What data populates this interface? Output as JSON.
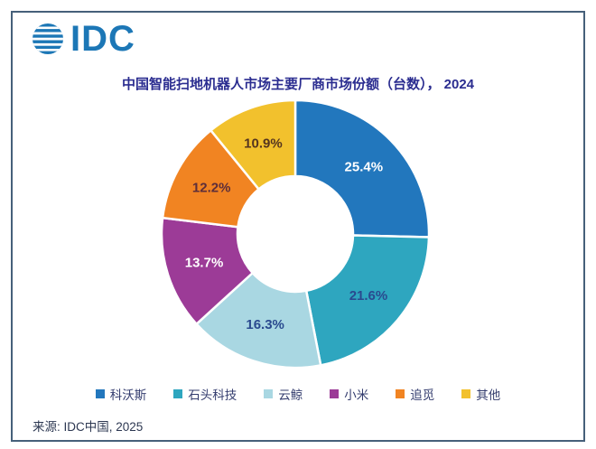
{
  "header": {
    "logo_text": "IDC",
    "logo_color": "#1c77b6"
  },
  "title": "中国智能扫地机器人市场主要厂商市场份额（台数）， 2024",
  "source": "来源: IDC中国, 2025",
  "colors": {
    "title_text": "#2b2d90",
    "legend_text": "#333c6e",
    "source_text": "#2d3852",
    "frame_border": "#46607a",
    "background": "#ffffff"
  },
  "chart_data": {
    "type": "pie",
    "subtype": "donut",
    "title": "中国智能扫地机器人市场主要厂商市场份额（台数）， 2024",
    "categories": [
      "科沃斯",
      "石头科技",
      "云鲸",
      "小米",
      "追觅",
      "其他"
    ],
    "values": [
      25.4,
      21.6,
      16.3,
      13.7,
      12.2,
      10.9
    ],
    "labels": [
      "25.4%",
      "21.6%",
      "16.3%",
      "13.7%",
      "12.2%",
      "10.9%"
    ],
    "colors": [
      "#2277bd",
      "#2ea6bf",
      "#a9d7e2",
      "#9c3b97",
      "#f18422",
      "#f2c12d"
    ],
    "label_colors": [
      "#ffffff",
      "#2a4a8f",
      "#2a4a8f",
      "#ffffff",
      "#5d2e3a",
      "#55351f"
    ],
    "start_angle_deg": 0,
    "direction": "clockwise",
    "donut_hole_ratio": 0.43,
    "legend_position": "bottom",
    "units": "percent share of units shipped"
  }
}
